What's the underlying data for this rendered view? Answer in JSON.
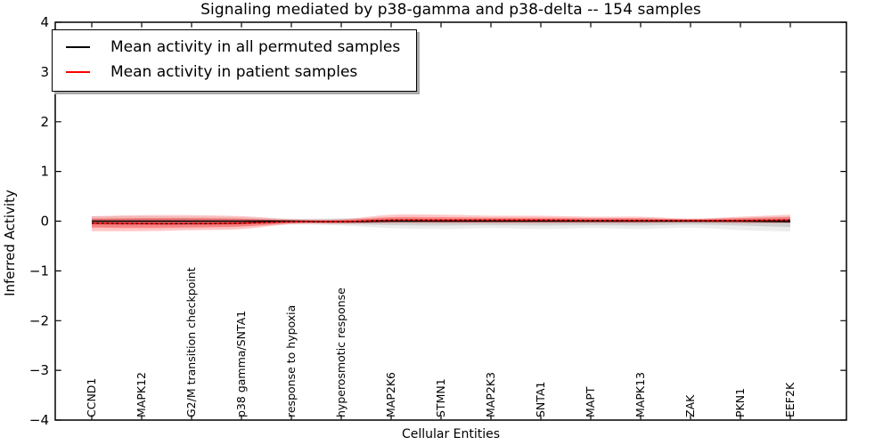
{
  "title": "Signaling mediated by p38-gamma and p38-delta -- 154 samples",
  "axes": {
    "xlabel": "Cellular Entities",
    "ylabel": "Inferred Activity",
    "ylim": [
      -4,
      4
    ],
    "ytick_labels": [
      "4",
      "3",
      "2",
      "1",
      "0",
      "−1",
      "−2",
      "−3",
      "−4"
    ],
    "ytick_values": [
      4,
      3,
      2,
      1,
      0,
      -1,
      -2,
      -3,
      -4
    ]
  },
  "legend": {
    "entries": [
      {
        "label": "Mean activity in all permuted samples",
        "color": "#000000"
      },
      {
        "label": "Mean activity in patient samples",
        "color": "#ff0000"
      }
    ]
  },
  "chart_data": {
    "type": "area",
    "title": "Signaling mediated by p38-gamma and p38-delta -- 154 samples",
    "xlabel": "Cellular Entities",
    "ylabel": "Inferred Activity",
    "ylim": [
      -4,
      4
    ],
    "grid": false,
    "legend_position": "upper left",
    "categories": [
      "CCND1",
      "MAPK12",
      "G2/M transition checkpoint",
      "p38 gamma/SNTA1",
      "response to hypoxia",
      "hyperosmotic response",
      "MAP2K6",
      "STMN1",
      "MAP2K3",
      "SNTA1",
      "MAPT",
      "MAPK13",
      "ZAK",
      "PKN1",
      "EEF2K"
    ],
    "series": [
      {
        "name": "Mean activity in all permuted samples",
        "color": "#000000",
        "band_color": "#000000",
        "mean": [
          0.0,
          0.0,
          0.0,
          0.0,
          0.0,
          -0.01,
          0.0,
          0.0,
          0.0,
          0.0,
          0.0,
          0.0,
          0.0,
          0.0,
          -0.01
        ],
        "band_inner_hi": [
          0.05,
          0.05,
          0.05,
          0.04,
          0.03,
          0.04,
          0.04,
          0.04,
          0.04,
          0.04,
          0.04,
          0.04,
          0.03,
          0.04,
          0.05
        ],
        "band_inner_lo": [
          -0.07,
          -0.07,
          -0.07,
          -0.06,
          -0.04,
          -0.06,
          -0.08,
          -0.09,
          -0.08,
          -0.09,
          -0.08,
          -0.09,
          -0.07,
          -0.09,
          -0.12
        ],
        "band_outer_hi": [
          0.1,
          0.1,
          0.09,
          0.08,
          0.05,
          0.06,
          0.07,
          0.05,
          0.06,
          0.05,
          0.06,
          0.05,
          0.05,
          0.07,
          0.1
        ],
        "band_outer_lo": [
          -0.12,
          -0.11,
          -0.11,
          -0.1,
          -0.07,
          -0.09,
          -0.14,
          -0.16,
          -0.14,
          -0.16,
          -0.14,
          -0.16,
          -0.13,
          -0.18,
          -0.21
        ]
      },
      {
        "name": "Mean activity in patient samples",
        "color": "#ff0000",
        "band_color": "#ff0000",
        "mean": [
          -0.04,
          -0.05,
          -0.05,
          -0.04,
          -0.01,
          -0.01,
          0.02,
          0.02,
          0.02,
          0.02,
          0.015,
          0.015,
          0.01,
          0.015,
          0.02
        ],
        "band_inner_hi": [
          0.05,
          0.06,
          0.06,
          0.05,
          0.02,
          0.02,
          0.08,
          0.08,
          0.07,
          0.07,
          0.06,
          0.06,
          0.04,
          0.06,
          0.08
        ],
        "band_inner_lo": [
          -0.13,
          -0.14,
          -0.13,
          -0.11,
          -0.04,
          -0.03,
          -0.02,
          -0.02,
          -0.02,
          -0.02,
          -0.02,
          -0.02,
          -0.015,
          -0.02,
          -0.02
        ],
        "band_outer_hi": [
          0.1,
          0.12,
          0.12,
          0.1,
          0.04,
          0.04,
          0.13,
          0.13,
          0.11,
          0.11,
          0.09,
          0.09,
          0.05,
          0.09,
          0.13
        ],
        "band_outer_lo": [
          -0.2,
          -0.2,
          -0.18,
          -0.16,
          -0.06,
          -0.05,
          -0.04,
          -0.04,
          -0.04,
          -0.04,
          -0.04,
          -0.04,
          -0.03,
          -0.04,
          -0.04
        ]
      }
    ]
  }
}
